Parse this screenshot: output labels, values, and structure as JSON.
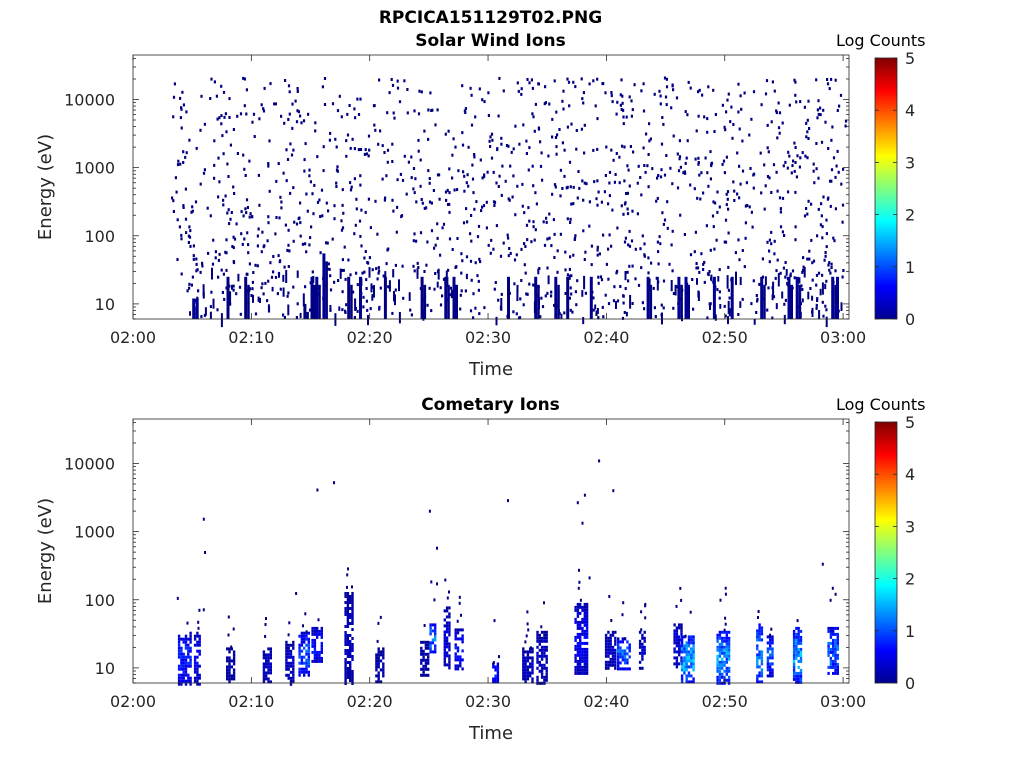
{
  "figure": {
    "filename_title": "RPCICA151129T02.PNG"
  },
  "colorbar": {
    "label": "Log Counts",
    "ticks": [
      0,
      1,
      2,
      3,
      4,
      5
    ],
    "colormap": "jet",
    "colors": [
      "#00008f",
      "#0000ff",
      "#00ffff",
      "#ffff00",
      "#ff0000",
      "#800000"
    ]
  },
  "chart_data": [
    {
      "type": "heatmap",
      "title": "Solar Wind Ions",
      "xlabel": "Time",
      "ylabel": "Energy (eV)",
      "x_ticks": [
        "02:00",
        "02:10",
        "02:20",
        "02:30",
        "02:40",
        "02:50",
        "03:00"
      ],
      "xlim_minutes": [
        0,
        60.5
      ],
      "y_scale": "log",
      "y_ticks": [
        10,
        100,
        1000,
        10000
      ],
      "ylim": [
        6,
        45000
      ],
      "z_label": "Log Counts",
      "z_range": [
        0,
        5
      ],
      "data_start_minute": 3.2,
      "sparse_scatter_energy_range_eV": [
        6,
        22000
      ],
      "dominant_log_count": 0,
      "low_energy_columns": [
        {
          "minute": 5.0,
          "energy_max": 12,
          "log_counts": 0.1
        },
        {
          "minute": 5.3,
          "energy_max": 12,
          "log_counts": 0.1
        },
        {
          "minute": 7.9,
          "energy_max": 25,
          "log_counts": 0.0
        },
        {
          "minute": 9.4,
          "energy_max": 25,
          "log_counts": 0.0
        },
        {
          "minute": 14.4,
          "energy_max": 10,
          "log_counts": 0.0
        },
        {
          "minute": 15.0,
          "energy_max": 25,
          "log_counts": 0.05
        },
        {
          "minute": 15.4,
          "energy_max": 25,
          "log_counts": 0.05
        },
        {
          "minute": 16.0,
          "energy_max": 55,
          "log_counts": 0.1
        },
        {
          "minute": 18.1,
          "energy_max": 25,
          "log_counts": 0.0
        },
        {
          "minute": 19.1,
          "energy_max": 25,
          "log_counts": 0.05
        },
        {
          "minute": 21.2,
          "energy_max": 25,
          "log_counts": 0.0
        },
        {
          "minute": 24.3,
          "energy_max": 25,
          "log_counts": 0.0
        },
        {
          "minute": 26.3,
          "energy_max": 25,
          "log_counts": 0.05
        },
        {
          "minute": 27.0,
          "energy_max": 25,
          "log_counts": 0.05
        },
        {
          "minute": 31.6,
          "energy_max": 25,
          "log_counts": 0.0
        },
        {
          "minute": 33.9,
          "energy_max": 25,
          "log_counts": 0.05
        },
        {
          "minute": 35.6,
          "energy_max": 25,
          "log_counts": 0.05
        },
        {
          "minute": 36.6,
          "energy_max": 25,
          "log_counts": 0.0
        },
        {
          "minute": 38.6,
          "energy_max": 25,
          "log_counts": 0.05
        },
        {
          "minute": 43.4,
          "energy_max": 25,
          "log_counts": 0.05
        },
        {
          "minute": 46.0,
          "energy_max": 25,
          "log_counts": 0.1
        },
        {
          "minute": 46.6,
          "energy_max": 25,
          "log_counts": 0.1
        },
        {
          "minute": 49.0,
          "energy_max": 25,
          "log_counts": 0.1
        },
        {
          "minute": 50.5,
          "energy_max": 25,
          "log_counts": 0.05
        },
        {
          "minute": 53.0,
          "energy_max": 25,
          "log_counts": 0.1
        },
        {
          "minute": 55.3,
          "energy_max": 25,
          "log_counts": 0.1
        },
        {
          "minute": 56.0,
          "energy_max": 25,
          "log_counts": 0.1
        },
        {
          "minute": 59.0,
          "energy_max": 25,
          "log_counts": 0.1
        },
        {
          "minute": 59.4,
          "energy_max": 25,
          "log_counts": 0.1
        }
      ]
    },
    {
      "type": "heatmap",
      "title": "Cometary Ions",
      "xlabel": "Time",
      "ylabel": "Energy (eV)",
      "x_ticks": [
        "02:00",
        "02:10",
        "02:20",
        "02:30",
        "02:40",
        "02:50",
        "03:00"
      ],
      "xlim_minutes": [
        0,
        60.5
      ],
      "y_scale": "log",
      "y_ticks": [
        10,
        100,
        1000,
        10000
      ],
      "ylim": [
        6,
        45000
      ],
      "z_label": "Log Counts",
      "z_range": [
        0,
        5
      ],
      "bursts": [
        {
          "minute": 4.3,
          "energy_min": 6,
          "energy_max": 34,
          "log_counts": 0.7
        },
        {
          "minute": 5.4,
          "energy_min": 6,
          "energy_max": 34,
          "log_counts": 0.5
        },
        {
          "minute": 8.2,
          "energy_min": 6,
          "energy_max": 20,
          "log_counts": 0.2
        },
        {
          "minute": 11.3,
          "energy_min": 6,
          "energy_max": 20,
          "log_counts": 0.3
        },
        {
          "minute": 13.2,
          "energy_min": 6,
          "energy_max": 25,
          "log_counts": 0.3
        },
        {
          "minute": 14.4,
          "energy_min": 8,
          "energy_max": 34,
          "log_counts": 0.9
        },
        {
          "minute": 15.5,
          "energy_min": 12,
          "energy_max": 40,
          "log_counts": 0.6
        },
        {
          "minute": 18.2,
          "energy_min": 6,
          "energy_max": 130,
          "log_counts": 0.3
        },
        {
          "minute": 20.8,
          "energy_min": 6,
          "energy_max": 20,
          "log_counts": 0.2
        },
        {
          "minute": 24.6,
          "energy_min": 8,
          "energy_max": 25,
          "log_counts": 0.2
        },
        {
          "minute": 25.3,
          "energy_min": 18,
          "energy_max": 45,
          "log_counts": 1.1
        },
        {
          "minute": 26.5,
          "energy_min": 10,
          "energy_max": 80,
          "log_counts": 0.4
        },
        {
          "minute": 27.5,
          "energy_min": 10,
          "energy_max": 38,
          "log_counts": 0.6
        },
        {
          "minute": 30.6,
          "energy_min": 6,
          "energy_max": 12,
          "log_counts": 0.7
        },
        {
          "minute": 33.3,
          "energy_min": 6,
          "energy_max": 20,
          "log_counts": 0.3
        },
        {
          "minute": 34.5,
          "energy_min": 6,
          "energy_max": 35,
          "log_counts": 0.3
        },
        {
          "minute": 37.8,
          "energy_min": 8,
          "energy_max": 90,
          "log_counts": 0.5
        },
        {
          "minute": 40.3,
          "energy_min": 10,
          "energy_max": 35,
          "log_counts": 0.3
        },
        {
          "minute": 41.4,
          "energy_min": 10,
          "energy_max": 28,
          "log_counts": 1.0
        },
        {
          "minute": 43.0,
          "energy_min": 10,
          "energy_max": 35,
          "log_counts": 0.3
        },
        {
          "minute": 46.0,
          "energy_min": 10,
          "energy_max": 45,
          "log_counts": 0.4
        },
        {
          "minute": 46.8,
          "energy_min": 6,
          "energy_max": 30,
          "log_counts": 1.3
        },
        {
          "minute": 49.8,
          "energy_min": 6,
          "energy_max": 35,
          "log_counts": 1.2
        },
        {
          "minute": 52.9,
          "energy_min": 6,
          "energy_max": 45,
          "log_counts": 1.1
        },
        {
          "minute": 53.8,
          "energy_min": 8,
          "energy_max": 30,
          "log_counts": 0.9
        },
        {
          "minute": 56.1,
          "energy_min": 6,
          "energy_max": 40,
          "log_counts": 1.3
        },
        {
          "minute": 59.1,
          "energy_min": 8,
          "energy_max": 40,
          "log_counts": 1.0
        }
      ],
      "sparse_points": [
        {
          "minute": 3.7,
          "energy": 110
        },
        {
          "minute": 5.9,
          "energy": 1600
        },
        {
          "minute": 6.0,
          "energy": 520
        },
        {
          "minute": 5.9,
          "energy": 75
        },
        {
          "minute": 13.7,
          "energy": 130
        },
        {
          "minute": 15.5,
          "energy": 4300
        },
        {
          "minute": 16.9,
          "energy": 5500
        },
        {
          "minute": 18.0,
          "energy": 160
        },
        {
          "minute": 25.0,
          "energy": 2100
        },
        {
          "minute": 25.6,
          "energy": 600
        },
        {
          "minute": 25.6,
          "energy": 180
        },
        {
          "minute": 31.6,
          "energy": 3000
        },
        {
          "minute": 37.5,
          "energy": 2800
        },
        {
          "minute": 37.9,
          "energy": 1400
        },
        {
          "minute": 38.1,
          "energy": 3600
        },
        {
          "minute": 39.3,
          "energy": 11500
        },
        {
          "minute": 40.5,
          "energy": 4200
        },
        {
          "minute": 38.5,
          "energy": 220
        },
        {
          "minute": 43.2,
          "energy": 90
        },
        {
          "minute": 58.2,
          "energy": 350
        }
      ]
    }
  ]
}
